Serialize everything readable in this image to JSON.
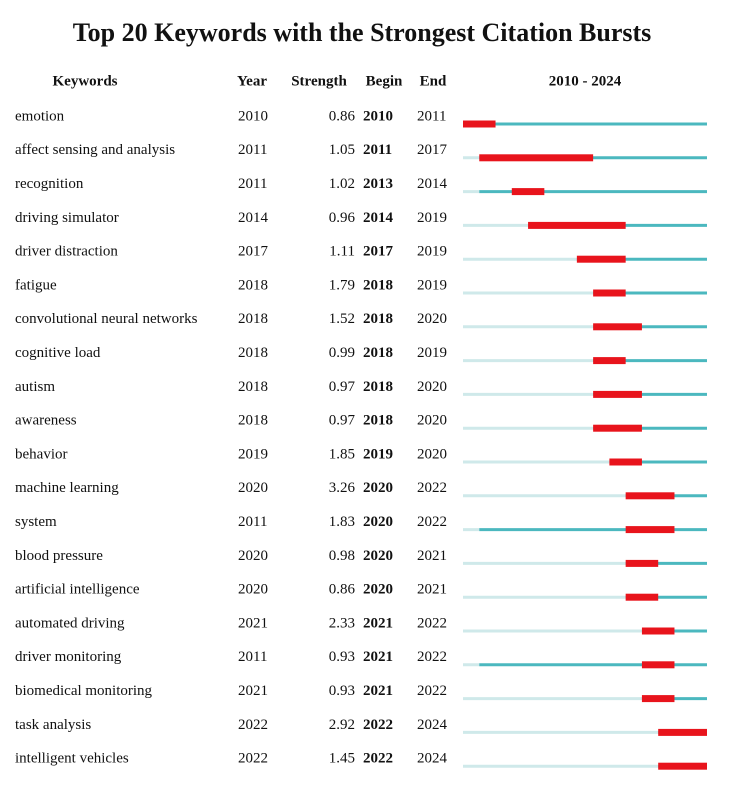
{
  "title": "Top 20 Keywords with the Strongest Citation Bursts",
  "table": {
    "headers": [
      "Keywords",
      "Year",
      "Strength",
      "Begin",
      "End",
      "2010 - 2024"
    ],
    "timeline_range": [
      2010,
      2024
    ],
    "rows": [
      [
        "emotion",
        2010,
        0.86,
        2010,
        2011
      ],
      [
        "affect sensing and analysis",
        2011,
        1.05,
        2011,
        2017
      ],
      [
        "recognition",
        2011,
        1.02,
        2013,
        2014
      ],
      [
        "driving simulator",
        2014,
        0.96,
        2014,
        2019
      ],
      [
        "driver distraction",
        2017,
        1.11,
        2017,
        2019
      ],
      [
        "fatigue",
        2018,
        1.79,
        2018,
        2019
      ],
      [
        "convolutional neural networks",
        2018,
        1.52,
        2018,
        2020
      ],
      [
        "cognitive load",
        2018,
        0.99,
        2018,
        2019
      ],
      [
        "autism",
        2018,
        0.97,
        2018,
        2020
      ],
      [
        "awareness",
        2018,
        0.97,
        2018,
        2020
      ],
      [
        "behavior",
        2019,
        1.85,
        2019,
        2020
      ],
      [
        "machine learning",
        2020,
        3.26,
        2020,
        2022
      ],
      [
        "system",
        2011,
        1.83,
        2020,
        2022
      ],
      [
        "blood pressure",
        2020,
        0.98,
        2020,
        2021
      ],
      [
        "artificial intelligence",
        2020,
        0.86,
        2020,
        2021
      ],
      [
        "automated driving",
        2021,
        2.33,
        2021,
        2022
      ],
      [
        "driver monitoring",
        2011,
        0.93,
        2021,
        2022
      ],
      [
        "biomedical monitoring",
        2021,
        0.93,
        2021,
        2022
      ],
      [
        "task analysis",
        2022,
        2.92,
        2022,
        2024
      ],
      [
        "intelligent vehicles",
        2022,
        1.45,
        2022,
        2024
      ]
    ]
  }
}
